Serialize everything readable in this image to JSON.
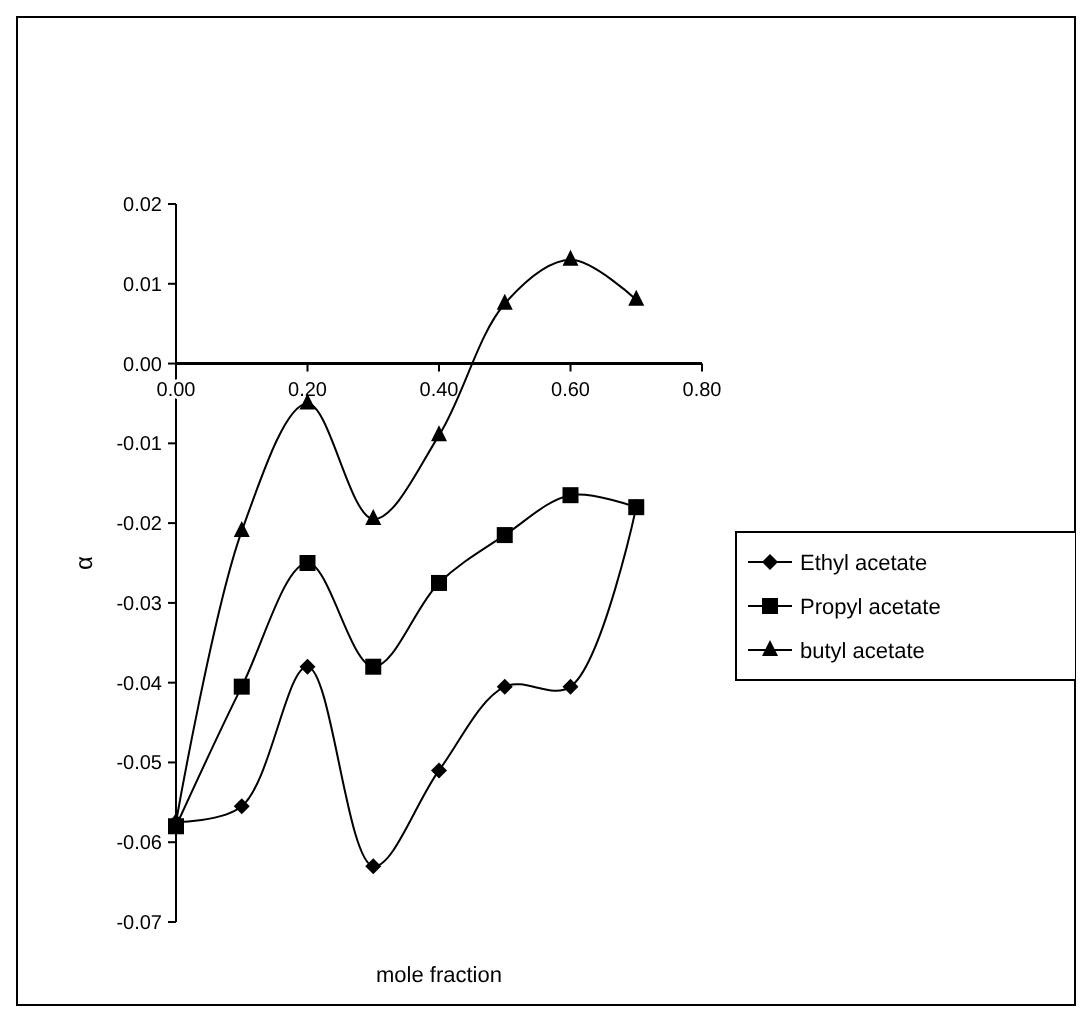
{
  "chart_data": {
    "type": "line",
    "xlabel": "mole fraction",
    "ylabel": "α",
    "xlim": [
      0,
      0.8
    ],
    "ylim": [
      -0.07,
      0.02
    ],
    "xticks": [
      {
        "value": 0,
        "label": "0.00"
      },
      {
        "value": 0.2,
        "label": "0.20"
      },
      {
        "value": 0.4,
        "label": "0.40"
      },
      {
        "value": 0.6,
        "label": "0.60"
      },
      {
        "value": 0.8,
        "label": "0.80"
      }
    ],
    "yticks": [
      {
        "value": 0.02,
        "label": "0.02"
      },
      {
        "value": 0.01,
        "label": "0.01"
      },
      {
        "value": 0,
        "label": "0.00"
      },
      {
        "value": -0.01,
        "label": "-0.01"
      },
      {
        "value": -0.02,
        "label": "-0.02"
      },
      {
        "value": -0.03,
        "label": "-0.03"
      },
      {
        "value": -0.04,
        "label": "-0.04"
      },
      {
        "value": -0.05,
        "label": "-0.05"
      },
      {
        "value": -0.06,
        "label": "-0.06"
      },
      {
        "value": -0.07,
        "label": "-0.07"
      }
    ],
    "x": [
      0,
      0.1,
      0.2,
      0.3,
      0.4,
      0.5,
      0.6,
      0.7
    ],
    "grid": false,
    "legend": "right",
    "line_style": "solid",
    "series": [
      {
        "name": "Ethyl acetate",
        "color": "#000000",
        "marker": "diamond",
        "values": [
          -0.0575,
          -0.0555,
          -0.038,
          -0.063,
          -0.051,
          -0.0405,
          -0.0405,
          -0.018
        ]
      },
      {
        "name": "Propyl acetate",
        "color": "#000000",
        "marker": "square",
        "values": [
          -0.058,
          -0.0405,
          -0.025,
          -0.038,
          -0.0275,
          -0.0215,
          -0.0165,
          -0.018
        ]
      },
      {
        "name": "butyl acetate",
        "color": "#000000",
        "marker": "triangle",
        "values": [
          -0.0575,
          -0.021,
          -0.005,
          -0.0195,
          -0.009,
          0.0075,
          0.013,
          0.008
        ]
      }
    ]
  }
}
